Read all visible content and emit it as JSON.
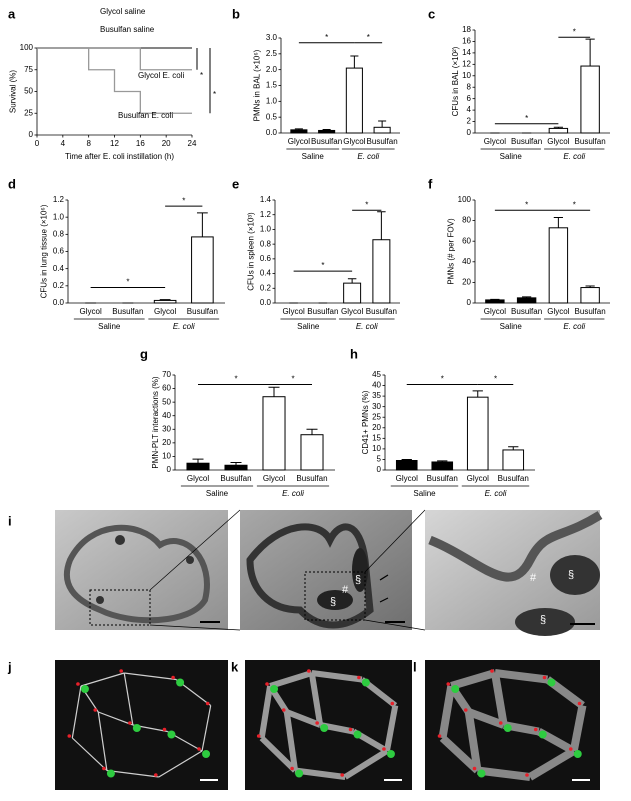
{
  "chart_data": [
    {
      "type": "line",
      "panel": "a",
      "ylabel": "Survival (%)",
      "xlabel": "Time after E. coli instillation (h)",
      "xlim": [
        0,
        24
      ],
      "xticks": [
        0,
        4,
        8,
        12,
        16,
        20,
        24
      ],
      "ylim": [
        0,
        100
      ],
      "yticks": [
        0,
        25,
        50,
        75,
        100
      ],
      "step": true,
      "series": [
        {
          "name": "Glycol saline",
          "color": "#555555",
          "x": [
            0,
            24
          ],
          "values": [
            100,
            100
          ]
        },
        {
          "name": "Busulfan saline",
          "color": "#555555",
          "x": [
            0,
            24
          ],
          "values": [
            100,
            100
          ]
        },
        {
          "name": "Glycol E. coli",
          "color": "#999999",
          "x": [
            0,
            16,
            24
          ],
          "values": [
            100,
            75,
            75
          ]
        },
        {
          "name": "Busulfan E. coli",
          "color": "#999999",
          "x": [
            0,
            8,
            12,
            16,
            24
          ],
          "values": [
            100,
            75,
            50,
            25,
            25
          ]
        }
      ],
      "annotations": [
        "*",
        "*"
      ]
    },
    {
      "type": "bar",
      "panel": "b",
      "ylabel": "PMNs in BAL (×10⁶)",
      "categories": [
        "Glycol",
        "Busulfan",
        "Glycol",
        "Busulfan"
      ],
      "groups": [
        "Saline",
        "E. coli"
      ],
      "values": [
        0.1,
        0.08,
        2.05,
        0.18
      ],
      "errors": [
        0.03,
        0.03,
        0.38,
        0.2
      ],
      "colors": [
        "#000000",
        "#000000",
        "#ffffff",
        "#ffffff"
      ],
      "ylim": [
        0,
        3
      ],
      "yticks": [
        {
          "value": 0,
          "label": "0.0"
        },
        0.5,
        {
          "value": 1,
          "label": "1.0"
        },
        1.5,
        {
          "value": 2,
          "label": "2.0"
        },
        2.5,
        {
          "value": 3,
          "label": "3.0"
        }
      ],
      "annotations": [
        "*",
        "*"
      ]
    },
    {
      "type": "bar",
      "panel": "c",
      "ylabel": "CFUs in BAL (×10²)",
      "categories": [
        "Glycol",
        "Busulfan",
        "Glycol",
        "Busulfan"
      ],
      "groups": [
        "Saline",
        "E. coli"
      ],
      "values": [
        0,
        0,
        0.8,
        11.7
      ],
      "errors": [
        0,
        0,
        0.2,
        4.7
      ],
      "colors": [
        "#000000",
        "#000000",
        "#ffffff",
        "#ffffff"
      ],
      "ylim": [
        0,
        18
      ],
      "yticks": [
        0,
        2,
        4,
        6,
        8,
        10,
        12,
        14,
        16,
        18
      ],
      "annotations": [
        "*",
        "*"
      ]
    },
    {
      "type": "bar",
      "panel": "d",
      "ylabel": "CFUs in lung tissue (×10⁶)",
      "categories": [
        "Glycol",
        "Busulfan",
        "Glycol",
        "Busulfan"
      ],
      "groups": [
        "Saline",
        "E. coli"
      ],
      "values": [
        0,
        0,
        0.03,
        0.77
      ],
      "errors": [
        0,
        0,
        0.01,
        0.28
      ],
      "colors": [
        "#000000",
        "#000000",
        "#ffffff",
        "#ffffff"
      ],
      "ylim": [
        0,
        1.2
      ],
      "yticks": [
        {
          "value": 0,
          "label": "0.0"
        },
        0.2,
        0.4,
        0.6,
        0.8,
        {
          "value": 1,
          "label": "1.0"
        },
        1.2
      ],
      "annotations": [
        "*",
        "*"
      ]
    },
    {
      "type": "bar",
      "panel": "e",
      "ylabel": "CFUs in spleen (×10³)",
      "categories": [
        "Glycol",
        "Busulfan",
        "Glycol",
        "Busulfan"
      ],
      "groups": [
        "Saline",
        "E. coli"
      ],
      "values": [
        0,
        0,
        0.27,
        0.86
      ],
      "errors": [
        0,
        0,
        0.06,
        0.38
      ],
      "colors": [
        "#000000",
        "#000000",
        "#ffffff",
        "#ffffff"
      ],
      "ylim": [
        0,
        1.4
      ],
      "yticks": [
        {
          "value": 0,
          "label": "0.0"
        },
        0.2,
        0.4,
        0.6,
        0.8,
        {
          "value": 1,
          "label": "1.0"
        },
        1.2,
        1.4
      ],
      "annotations": [
        "*",
        "*"
      ]
    },
    {
      "type": "bar",
      "panel": "f",
      "ylabel": "PMNs (# per FOV)",
      "categories": [
        "Glycol",
        "Busulfan",
        "Glycol",
        "Busulfan"
      ],
      "groups": [
        "Saline",
        "E. coli"
      ],
      "values": [
        3,
        5,
        73,
        15
      ],
      "errors": [
        0.5,
        1,
        10,
        1.5
      ],
      "colors": [
        "#000000",
        "#000000",
        "#ffffff",
        "#ffffff"
      ],
      "ylim": [
        0,
        100
      ],
      "yticks": [
        0,
        20,
        40,
        60,
        80,
        100
      ],
      "annotations": [
        "*",
        "*"
      ]
    },
    {
      "type": "bar",
      "panel": "g",
      "ylabel": "PMN-PLT interactions (%)",
      "categories": [
        "Glycol",
        "Busulfan",
        "Glycol",
        "Busulfan"
      ],
      "groups": [
        "Saline",
        "E. coli"
      ],
      "values": [
        5,
        3.5,
        54,
        26
      ],
      "errors": [
        3,
        2,
        7,
        4
      ],
      "colors": [
        "#000000",
        "#000000",
        "#ffffff",
        "#ffffff"
      ],
      "ylim": [
        0,
        70
      ],
      "yticks": [
        0,
        10,
        20,
        30,
        40,
        50,
        60,
        70
      ],
      "annotations": [
        "*",
        "*"
      ]
    },
    {
      "type": "bar",
      "panel": "h",
      "ylabel": "CD41+ PMNs (%)",
      "categories": [
        "Glycol",
        "Busulfan",
        "Glycol",
        "Busulfan"
      ],
      "groups": [
        "Saline",
        "E. coli"
      ],
      "values": [
        4.5,
        3.8,
        34.5,
        9.5
      ],
      "errors": [
        0.5,
        0.5,
        3,
        1.5
      ],
      "colors": [
        "#000000",
        "#000000",
        "#ffffff",
        "#ffffff"
      ],
      "ylim": [
        0,
        45
      ],
      "yticks": [
        0,
        5,
        10,
        15,
        20,
        25,
        30,
        35,
        40,
        45
      ],
      "annotations": [
        "*",
        "*"
      ]
    }
  ],
  "micrographs": [
    {
      "panel": "i",
      "labels": [
        "#",
        "§",
        "§",
        "#",
        "§",
        "§"
      ]
    },
    {
      "panel": "j"
    },
    {
      "panel": "k"
    },
    {
      "panel": "l"
    }
  ]
}
